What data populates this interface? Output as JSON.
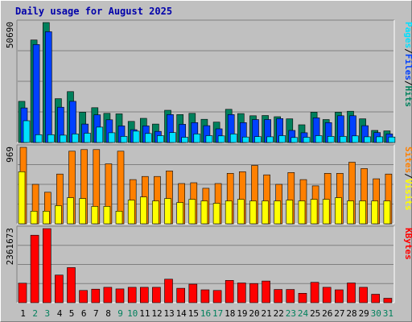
{
  "title": "Daily usage for August 2025",
  "colors": {
    "hits": "#00805c",
    "files": "#0040ff",
    "pages": "#00e0ff",
    "visits": "#ffff00",
    "sites": "#ff8000",
    "kbytes": "#ff0000",
    "weekday_label": "#000000",
    "weekend_label": "#00805c"
  },
  "chart_data": [
    {
      "type": "bar",
      "panel": "top",
      "max_label": "50690",
      "legend": [
        {
          "name": "Pages",
          "color": "#00e0ff"
        },
        {
          "name": "Files",
          "color": "#0040ff"
        },
        {
          "name": "Hits",
          "color": "#00805c"
        }
      ],
      "ylim": [
        0,
        50690
      ],
      "categories": [
        "1",
        "2",
        "3",
        "4",
        "5",
        "6",
        "7",
        "8",
        "9",
        "10",
        "11",
        "12",
        "13",
        "14",
        "15",
        "16",
        "17",
        "18",
        "19",
        "20",
        "21",
        "22",
        "23",
        "24",
        "25",
        "26",
        "27",
        "28",
        "29",
        "30",
        "31"
      ],
      "series": [
        {
          "name": "Hits",
          "values": [
            17400,
            43300,
            50690,
            18500,
            21500,
            12800,
            14700,
            12300,
            12100,
            8900,
            10200,
            7800,
            13600,
            11800,
            12300,
            9800,
            8600,
            14000,
            12200,
            11300,
            11400,
            10900,
            10000,
            7500,
            12800,
            9700,
            12800,
            13200,
            10000,
            5100,
            4900
          ]
        },
        {
          "name": "Files",
          "values": [
            14600,
            41400,
            46800,
            14900,
            17400,
            7800,
            11700,
            9600,
            7000,
            5400,
            7000,
            4700,
            11800,
            7700,
            8400,
            7100,
            5800,
            11800,
            8400,
            9700,
            9700,
            10100,
            5100,
            4100,
            10400,
            8400,
            11300,
            11300,
            7100,
            4200,
            3600
          ]
        },
        {
          "name": "Pages",
          "values": [
            9200,
            3300,
            3300,
            3100,
            3600,
            3900,
            6500,
            4100,
            2600,
            4800,
            3800,
            2900,
            4200,
            2200,
            3600,
            2900,
            2800,
            3600,
            2300,
            2500,
            2400,
            2900,
            2100,
            2200,
            2900,
            2600,
            2600,
            2800,
            2400,
            2400,
            2300
          ]
        }
      ]
    },
    {
      "type": "bar",
      "panel": "middle",
      "max_label": "969",
      "legend": [
        {
          "name": "Sites",
          "color": "#ff8000"
        },
        {
          "name": "Visits",
          "color": "#ffff00"
        }
      ],
      "ylim": [
        0,
        969
      ],
      "categories": [
        "1",
        "2",
        "3",
        "4",
        "5",
        "6",
        "7",
        "8",
        "9",
        "10",
        "11",
        "12",
        "13",
        "14",
        "15",
        "16",
        "17",
        "18",
        "19",
        "20",
        "21",
        "22",
        "23",
        "24",
        "25",
        "26",
        "27",
        "28",
        "29",
        "30",
        "31"
      ],
      "series": [
        {
          "name": "Sites",
          "values": [
            969,
            500,
            400,
            630,
            920,
            940,
            940,
            760,
            920,
            560,
            600,
            600,
            670,
            510,
            520,
            450,
            510,
            640,
            660,
            740,
            620,
            500,
            650,
            560,
            480,
            640,
            640,
            780,
            700,
            570,
            630
          ]
        },
        {
          "name": "Visits",
          "values": [
            660,
            160,
            160,
            230,
            330,
            320,
            220,
            220,
            160,
            300,
            340,
            290,
            320,
            270,
            310,
            290,
            260,
            290,
            310,
            290,
            290,
            290,
            300,
            290,
            310,
            310,
            330,
            290,
            290,
            290,
            290
          ]
        }
      ]
    },
    {
      "type": "bar",
      "panel": "bottom",
      "max_label": "2361673",
      "legend": [
        {
          "name": "KBytes",
          "color": "#ff0000"
        }
      ],
      "ylim": [
        0,
        2361673
      ],
      "categories": [
        "1",
        "2",
        "3",
        "4",
        "5",
        "6",
        "7",
        "8",
        "9",
        "10",
        "11",
        "12",
        "13",
        "14",
        "15",
        "16",
        "17",
        "18",
        "19",
        "20",
        "21",
        "22",
        "23",
        "24",
        "25",
        "26",
        "27",
        "28",
        "29",
        "30",
        "31"
      ],
      "series": [
        {
          "name": "KBytes",
          "values": [
            620000,
            2150000,
            2361673,
            880000,
            1120000,
            390000,
            430000,
            490000,
            440000,
            490000,
            490000,
            490000,
            750000,
            460000,
            590000,
            410000,
            390000,
            710000,
            630000,
            610000,
            690000,
            420000,
            420000,
            300000,
            650000,
            490000,
            410000,
            630000,
            490000,
            270000,
            140000
          ]
        }
      ]
    }
  ],
  "x_labels": [
    {
      "text": "1",
      "weekend": false
    },
    {
      "text": "2",
      "weekend": true
    },
    {
      "text": "3",
      "weekend": true
    },
    {
      "text": "4",
      "weekend": false
    },
    {
      "text": "5",
      "weekend": false
    },
    {
      "text": "6",
      "weekend": false
    },
    {
      "text": "7",
      "weekend": false
    },
    {
      "text": "8",
      "weekend": false
    },
    {
      "text": "9",
      "weekend": true
    },
    {
      "text": "10",
      "weekend": true
    },
    {
      "text": "11",
      "weekend": false
    },
    {
      "text": "12",
      "weekend": false
    },
    {
      "text": "13",
      "weekend": false
    },
    {
      "text": "14",
      "weekend": false
    },
    {
      "text": "15",
      "weekend": false
    },
    {
      "text": "16",
      "weekend": true
    },
    {
      "text": "17",
      "weekend": true
    },
    {
      "text": "18",
      "weekend": false
    },
    {
      "text": "19",
      "weekend": false
    },
    {
      "text": "20",
      "weekend": false
    },
    {
      "text": "21",
      "weekend": false
    },
    {
      "text": "22",
      "weekend": false
    },
    {
      "text": "23",
      "weekend": true
    },
    {
      "text": "24",
      "weekend": true
    },
    {
      "text": "25",
      "weekend": false
    },
    {
      "text": "26",
      "weekend": false
    },
    {
      "text": "27",
      "weekend": false
    },
    {
      "text": "28",
      "weekend": false
    },
    {
      "text": "29",
      "weekend": false
    },
    {
      "text": "30",
      "weekend": true
    },
    {
      "text": "31",
      "weekend": true
    }
  ]
}
